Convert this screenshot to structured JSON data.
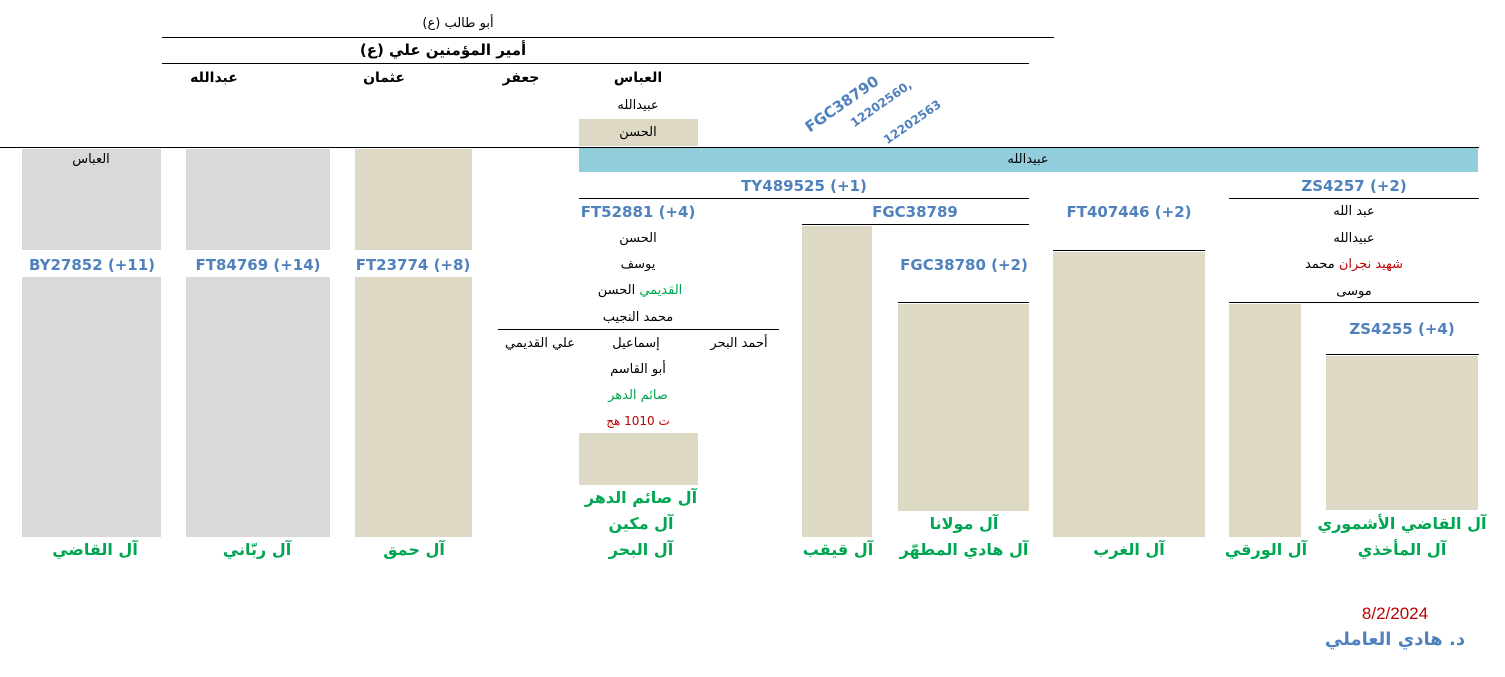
{
  "ancestors": {
    "abu_talib": "أبو طالب (ع)",
    "ali": "أمير المؤمنين علي (ع)"
  },
  "sons": {
    "abbas": "العباس",
    "jafar": "جعفر",
    "uthman": "عثمان",
    "abdullah": "عبدالله"
  },
  "abbas_line": {
    "ubaidullah": "عبيدالله",
    "hasan": "الحسن"
  },
  "rotated_snp": {
    "main": "FGC38790",
    "line2": "12202560,",
    "line3": "12202563"
  },
  "main_bar": "عبيدالله",
  "left_columns": {
    "qadi": {
      "top": "العباس",
      "snp": "BY27852 (+11)",
      "family": "آل القاضي"
    },
    "rabbani": {
      "snp": "FT84769 (+14)",
      "family": "آل ربّاني"
    },
    "hamaq": {
      "snp": "FT23774 (+8)",
      "family": "آل حمق"
    }
  },
  "ty489525": "TY489525 (+1)",
  "ft52881": {
    "snp": "FT52881 (+4)",
    "names": [
      "الحسن",
      "يوسف"
    ],
    "hasan_qadimi_a": "الحسن",
    "hasan_qadimi_b": "القديمي",
    "mohammad_najib": "محمد النجيب",
    "ahmad_bahr": "أحمد البحر",
    "ismail": "إسماعيل",
    "ali_qadimi": "علي القديمي",
    "abu_qasim": "أبو القاسم",
    "saim_dahr": "صائم الدهر",
    "death": "ت 1010 هج",
    "families": [
      "آل صائم الدهر",
      "آل مكين",
      "آل البحر"
    ]
  },
  "fgc38789": {
    "snp": "FGC38789",
    "qayqab": "آل قيقب",
    "fgc38780": "FGC38780 (+2)",
    "mawlana": "آل مولانا",
    "hadi_mutahhar": "آل هادي المطهّر"
  },
  "ft407446": {
    "snp": "FT407446 (+2)",
    "family": "آل الغرب"
  },
  "zs4257": {
    "snp": "ZS4257 (+2)",
    "names": [
      "عبد الله",
      "عبيدالله"
    ],
    "mohammad": "محمد",
    "shahid_najran": "شهيد نجران",
    "musa": "موسى",
    "warqi": "آل الورقي",
    "zs4255": "ZS4255 (+4)",
    "ashmuri": "آل القاضي الأشموري",
    "makhidhi": "آل المأخذي"
  },
  "footer": {
    "date": "8/2/2024",
    "author": "د. هادي العاملي"
  },
  "colors": {
    "gray": "#D9D9D9",
    "tan": "#DDD9C4",
    "cyan": "#92CDDC",
    "blue": "#4F81BD",
    "green": "#00A651",
    "red": "#C00000"
  }
}
